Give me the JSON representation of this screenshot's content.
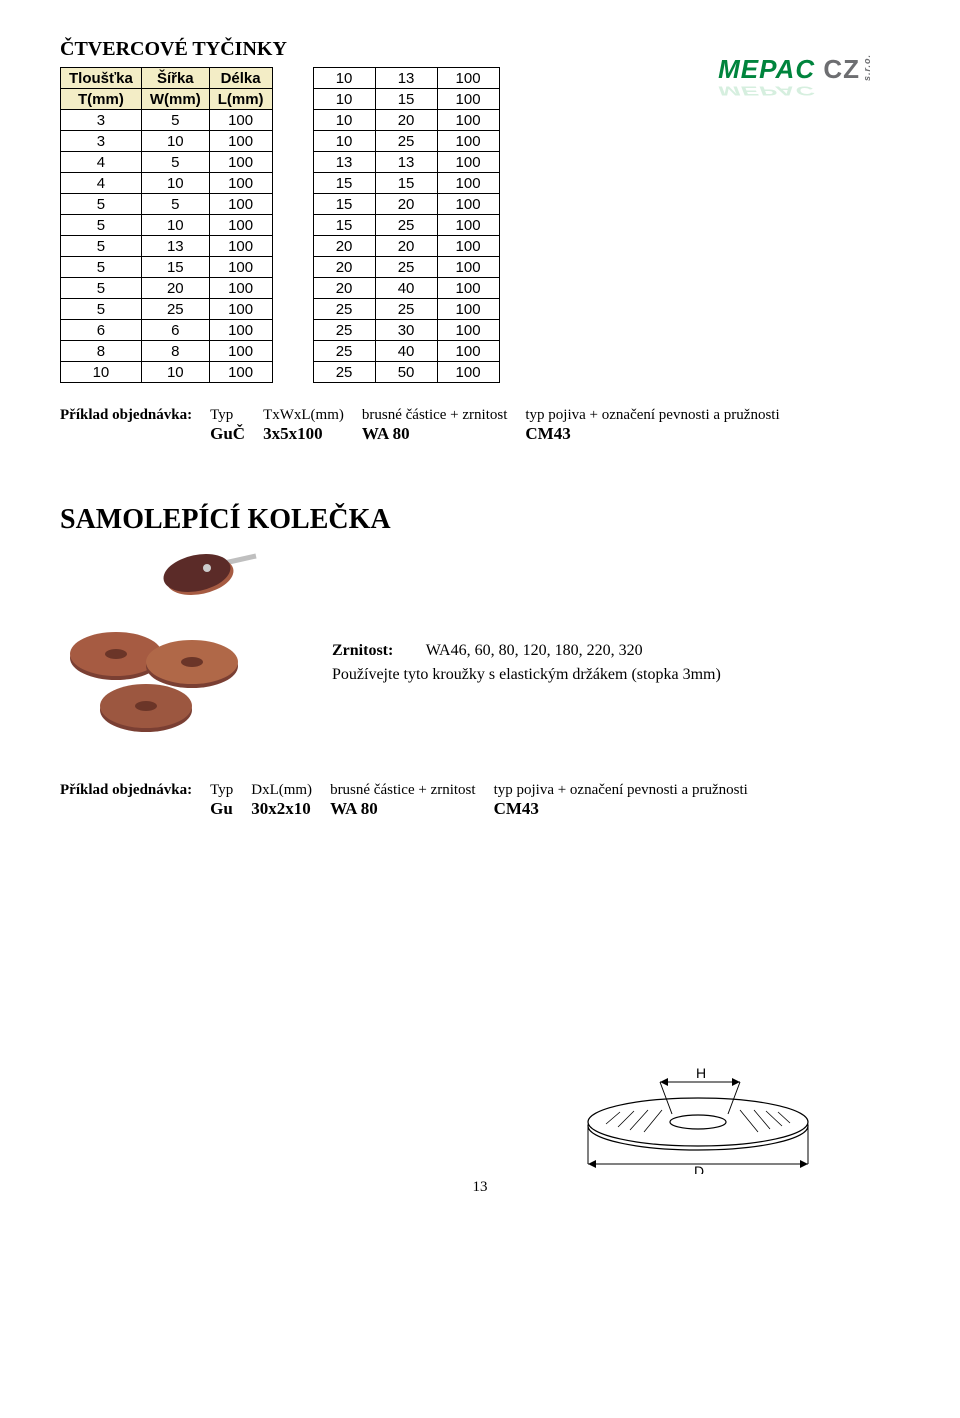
{
  "logo": {
    "name": "MEPAC",
    "suffix": "CZ",
    "sro": "s.r.o.",
    "color_green": "#00843d",
    "color_grey": "#6d6e71"
  },
  "section1_title": "ČTVERCOVÉ TYČINKY",
  "table1": {
    "header_bg": "#f3edc6",
    "columns": [
      "Tloušťka",
      "Šířka",
      "Délka"
    ],
    "sub_columns": [
      "T(mm)",
      "W(mm)",
      "L(mm)"
    ],
    "rows": [
      [
        3,
        5,
        100
      ],
      [
        3,
        10,
        100
      ],
      [
        4,
        5,
        100
      ],
      [
        4,
        10,
        100
      ],
      [
        5,
        5,
        100
      ],
      [
        5,
        10,
        100
      ],
      [
        5,
        13,
        100
      ],
      [
        5,
        15,
        100
      ],
      [
        5,
        20,
        100
      ],
      [
        5,
        25,
        100
      ],
      [
        6,
        6,
        100
      ],
      [
        8,
        8,
        100
      ],
      [
        10,
        10,
        100
      ]
    ]
  },
  "table2": {
    "rows": [
      [
        10,
        13,
        100
      ],
      [
        10,
        15,
        100
      ],
      [
        10,
        20,
        100
      ],
      [
        10,
        25,
        100
      ],
      [
        13,
        13,
        100
      ],
      [
        15,
        15,
        100
      ],
      [
        15,
        20,
        100
      ],
      [
        15,
        25,
        100
      ],
      [
        20,
        20,
        100
      ],
      [
        20,
        25,
        100
      ],
      [
        20,
        40,
        100
      ],
      [
        25,
        25,
        100
      ],
      [
        25,
        30,
        100
      ],
      [
        25,
        40,
        100
      ],
      [
        25,
        50,
        100
      ]
    ]
  },
  "example1": {
    "label": "Příklad objednávka:",
    "col_headers": [
      "Typ",
      "TxWxL(mm)",
      "brusné částice + zrnitost",
      "typ pojiva + označení pevnosti a pružnosti"
    ],
    "values": [
      "GuČ",
      "3x5x100",
      "WA 80",
      "CM43"
    ]
  },
  "section2_title": "SAMOLEPÍCÍ KOLEČKA",
  "diagram": {
    "label_H": "H",
    "label_D": "D",
    "stroke": "#000000"
  },
  "specs": {
    "zrnitost_label": "Zrnitost:",
    "zrnitost_value": "WA46, 60, 80, 120, 180, 220, 320",
    "note": "Používejte tyto kroužky s elastickým držákem (stopka 3mm)"
  },
  "example2": {
    "label": "Příklad objednávka:",
    "col_headers": [
      "Typ",
      "DxL(mm)",
      "brusné částice + zrnitost",
      "typ pojiva + označení pevnosti a pružnosti"
    ],
    "values": [
      "Gu",
      "30x2x10",
      "WA 80",
      "CM43"
    ]
  },
  "product_colors": {
    "disc_dark": "#5b2b28",
    "disc_light": "#a65b42",
    "shaft": "#bfbfbf"
  },
  "page_number": "13"
}
